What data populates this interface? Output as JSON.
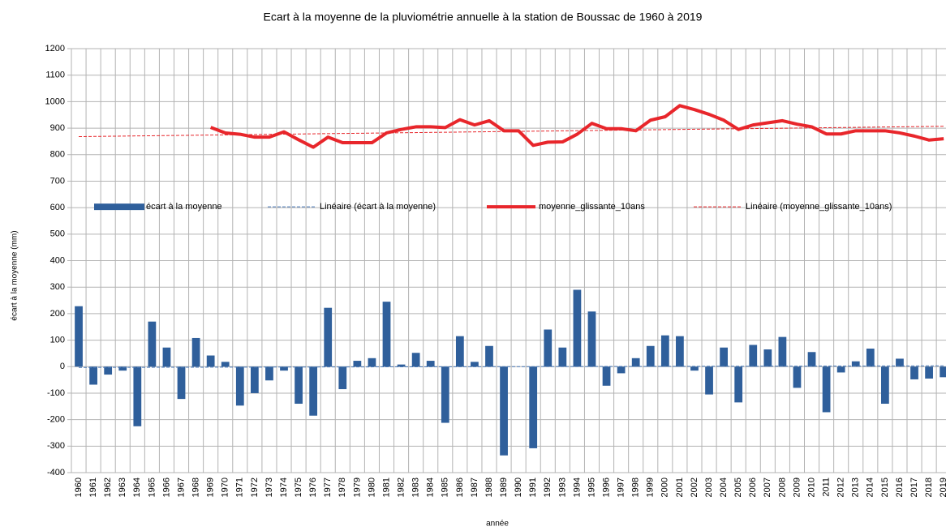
{
  "chart_data": {
    "type": "bar-line",
    "title": "Ecart à la moyenne de la pluviométrie annuelle à la station de Boussac de 1960 à 2019",
    "x_label": "année",
    "y_label": "écart à la moyenne (mm)",
    "categories": [
      "1960",
      "1961",
      "1962",
      "1963",
      "1964",
      "1965",
      "1966",
      "1967",
      "1968",
      "1969",
      "1970",
      "1971",
      "1972",
      "1973",
      "1974",
      "1975",
      "1976",
      "1977",
      "1978",
      "1979",
      "1980",
      "1981",
      "1982",
      "1983",
      "1984",
      "1985",
      "1986",
      "1987",
      "1988",
      "1989",
      "1990",
      "1991",
      "1992",
      "1993",
      "1994",
      "1995",
      "1996",
      "1997",
      "1998",
      "1999",
      "2000",
      "2001",
      "2002",
      "2003",
      "2004",
      "2005",
      "2006",
      "2007",
      "2008",
      "2009",
      "2010",
      "2011",
      "2012",
      "2013",
      "2014",
      "2015",
      "2016",
      "2017",
      "2018",
      "2019"
    ],
    "series": [
      {
        "name": "écart à la moyenne",
        "kind": "bar",
        "color": "#2f5f9b",
        "values": [
          228,
          -68,
          -30,
          -15,
          -225,
          170,
          72,
          -122,
          108,
          42,
          18,
          -147,
          -100,
          -52,
          -15,
          -140,
          -185,
          222,
          -85,
          22,
          32,
          245,
          8,
          52,
          22,
          -212,
          115,
          18,
          78,
          -335,
          0,
          -308,
          140,
          72,
          290,
          208,
          -72,
          -25,
          32,
          78,
          118,
          115,
          -15,
          -105,
          72,
          -135,
          82,
          65,
          112,
          -80,
          55,
          -172,
          -22,
          20,
          68,
          -140,
          30,
          -48,
          -45,
          -40
        ]
      },
      {
        "name": "Linéaire (écart à la moyenne)",
        "kind": "trend",
        "color": "#4a7ab8",
        "x": [
          "1960",
          "2019"
        ],
        "values": [
          -3,
          3
        ]
      },
      {
        "name": "moyenne_glissante_10ans",
        "kind": "line",
        "color": "#e8262b",
        "values": [
          null,
          null,
          null,
          null,
          null,
          null,
          null,
          null,
          null,
          903,
          882,
          877,
          866,
          866,
          886,
          856,
          828,
          866,
          845,
          845,
          845,
          882,
          895,
          905,
          905,
          902,
          932,
          912,
          928,
          890,
          890,
          835,
          847,
          848,
          877,
          918,
          898,
          898,
          890,
          930,
          943,
          985,
          970,
          952,
          930,
          895,
          912,
          920,
          928,
          915,
          905,
          878,
          878,
          890,
          890,
          890,
          882,
          870,
          855,
          860
        ]
      },
      {
        "name": "Linéaire (moyenne_glissante_10ans)",
        "kind": "trend",
        "color": "#e8262b",
        "x": [
          "1960",
          "2019"
        ],
        "values": [
          868,
          907
        ]
      }
    ],
    "ylim": [
      -400,
      1200
    ],
    "yticks": [
      -400,
      -300,
      -200,
      -100,
      0,
      100,
      200,
      300,
      400,
      500,
      600,
      700,
      800,
      900,
      1000,
      1100,
      1200
    ],
    "grid": true,
    "legend": "center"
  }
}
